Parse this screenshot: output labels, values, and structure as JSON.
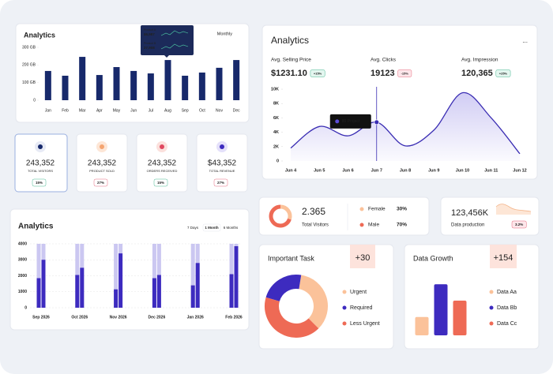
{
  "tooltip": {
    "rows": [
      {
        "label": "Product A",
        "value": "$6,987"
      },
      {
        "label": "Product B",
        "value": "27,908"
      }
    ]
  },
  "stat_cards": [
    {
      "value": "243,352",
      "label": "TOTAL VISITORS",
      "change": "15%",
      "color": "#1fa77a"
    },
    {
      "value": "243,352",
      "label": "PRODUCT SOLD",
      "change": "27%",
      "color": "#e0475f"
    },
    {
      "value": "243,352",
      "label": "ORDERS RECEIVED",
      "change": "15%",
      "color": "#1fa77a"
    },
    {
      "value": "$43,352",
      "label": "TOTAL REVENUE",
      "change": "27%",
      "color": "#e0475f"
    }
  ],
  "production": {
    "value": "123,456K",
    "label": "Data production",
    "change": "3.2%"
  },
  "chart_data": [
    {
      "type": "bar",
      "title": "Analytics",
      "period": "Monthly",
      "color": "#17296b",
      "categories": [
        "Jan",
        "Feb",
        "Mar",
        "Apr",
        "May",
        "Jun",
        "Jul",
        "Aug",
        "Sep",
        "Oct",
        "Nov",
        "Dec"
      ],
      "values": [
        166,
        139,
        246,
        143,
        188,
        166,
        152,
        228,
        139,
        157,
        184,
        228
      ],
      "ylim": [
        0,
        300
      ],
      "yticks": [
        0,
        {
          "value": 100,
          "label": "100 GB"
        },
        {
          "value": 200,
          "label": "200 GB"
        },
        {
          "value": 300,
          "label": "300 GB"
        }
      ]
    },
    {
      "type": "grouped_bar",
      "title": "Analytics",
      "tabs": [
        "7 Days",
        "1 Month",
        "6 Months"
      ],
      "active_tab": 1,
      "categories": [
        "Sep 2026",
        "Oct 2026",
        "Nov 2026",
        "Dec 2026",
        "Jan 2026",
        "Feb 2026"
      ],
      "series": [
        {
          "color": "#3d2bbf",
          "values": [
            1850,
            2050,
            1150,
            1850,
            1400,
            2100
          ]
        },
        {
          "color": "#3d2bbf",
          "values": [
            3000,
            2500,
            3400,
            2050,
            2800,
            3850
          ]
        }
      ],
      "track_color": "#cbc7f1",
      "ylim": [
        0,
        4000
      ],
      "yticks": [
        0,
        1000,
        2000,
        3000,
        4000
      ],
      "grid": true
    },
    {
      "type": "line",
      "title": "Analytics",
      "menu": "...",
      "stats": [
        {
          "label": "Avg. Selling Price",
          "value": "$1231.10",
          "change": "+15%",
          "color": "#1fa77a"
        },
        {
          "label": "Avg. Clicks",
          "value": "19123",
          "change": "-15%",
          "color": "#e0475f"
        },
        {
          "label": "Avg. Impression",
          "value": "120,365",
          "change": "+25%",
          "color": "#1fa77a"
        }
      ],
      "categories": [
        "Jun 4",
        "Jun 5",
        "Jun 6",
        "Jun 7",
        "Jun 8",
        "Jun 9",
        "Jun 10",
        "Jun 11",
        "Jun 12"
      ],
      "series": [
        {
          "color": "#3a2db3",
          "values": [
            1800,
            4800,
            3500,
            5400,
            2100,
            4300,
            9500,
            6000,
            1000
          ]
        }
      ],
      "tooltip_index": 3,
      "tooltip_text": "80 Project",
      "ylim": [
        0,
        10000
      ],
      "yticks": [
        0,
        {
          "value": 2000,
          "label": "2K"
        },
        {
          "value": 4000,
          "label": "4K"
        },
        {
          "value": 6000,
          "label": "6K"
        },
        {
          "value": 8000,
          "label": "8K"
        },
        {
          "value": 10000,
          "label": "10K"
        }
      ]
    },
    {
      "type": "pie",
      "total": "2.365",
      "caption": "Total Visitors",
      "categories": [
        "Female",
        "Male"
      ],
      "values": [
        30,
        70
      ],
      "value_labels": [
        "30%",
        "70%"
      ],
      "colors": [
        "#fbc29a",
        "#ee6a55"
      ]
    },
    {
      "type": "donut",
      "title": "Important Task",
      "badge": "+30",
      "categories": [
        "Urgent",
        "Required",
        "Less Urgent"
      ],
      "values": [
        35,
        23,
        42
      ],
      "colors": [
        "#fbc29a",
        "#3d2bbf",
        "#ee6a55"
      ]
    },
    {
      "type": "bar",
      "title": "Data Growth",
      "badge": "+154",
      "categories": [
        "Data Aa",
        "Data Bb",
        "Data Cc"
      ],
      "values": [
        29,
        81,
        55
      ],
      "colors": [
        "#fbc29a",
        "#3d2bbf",
        "#ee6a55"
      ],
      "ylim": [
        0,
        100
      ]
    }
  ]
}
